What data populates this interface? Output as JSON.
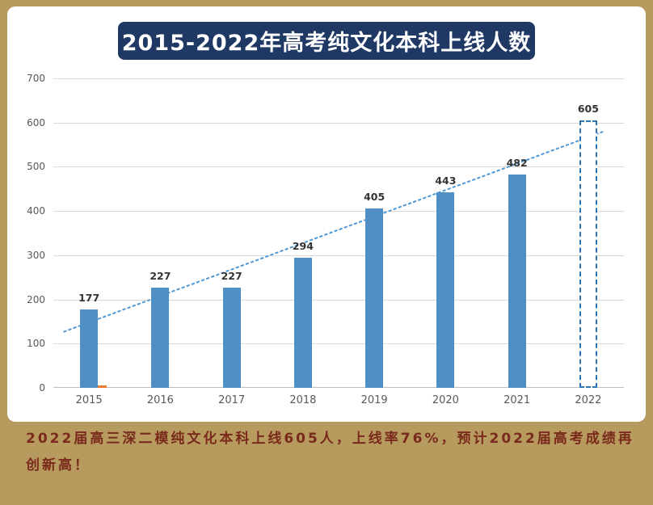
{
  "page": {
    "background_color": "#b79a5e"
  },
  "chart_card": {
    "title": "2015-2022年高考纯文化本科上线人数",
    "title_bg": "#1f3864",
    "title_color": "#ffffff"
  },
  "chart_data": {
    "type": "bar",
    "title": "2015-2022年高考纯文化本科上线人数",
    "categories": [
      "2015",
      "2016",
      "2017",
      "2018",
      "2019",
      "2020",
      "2021",
      "2022"
    ],
    "series": [
      {
        "name": "上线人数",
        "values": [
          177,
          227,
          227,
          294,
          405,
          443,
          482,
          605
        ],
        "color": "#4f8fc6"
      }
    ],
    "data_labels": [
      "177",
      "227",
      "227",
      "294",
      "405",
      "443",
      "482",
      "605"
    ],
    "projected_category": "2022",
    "projected_bar_style": "dashed-outline",
    "projected_border_color": "#2e74b5",
    "trendline": {
      "style": "dotted",
      "color": "#4f97d5"
    },
    "marker": {
      "category": "2015",
      "color": "#ed7d31"
    },
    "ylim": [
      0,
      700
    ],
    "yticks": [
      0,
      100,
      200,
      300,
      400,
      500,
      600,
      700
    ],
    "grid": true,
    "legend": "none",
    "xlabel": "",
    "ylabel": ""
  },
  "caption": {
    "text": "2022届高三深二模纯文化本科上线605人，上线率76%，预计2022届高考成绩再创新高！",
    "color": "#7a2a1c"
  }
}
